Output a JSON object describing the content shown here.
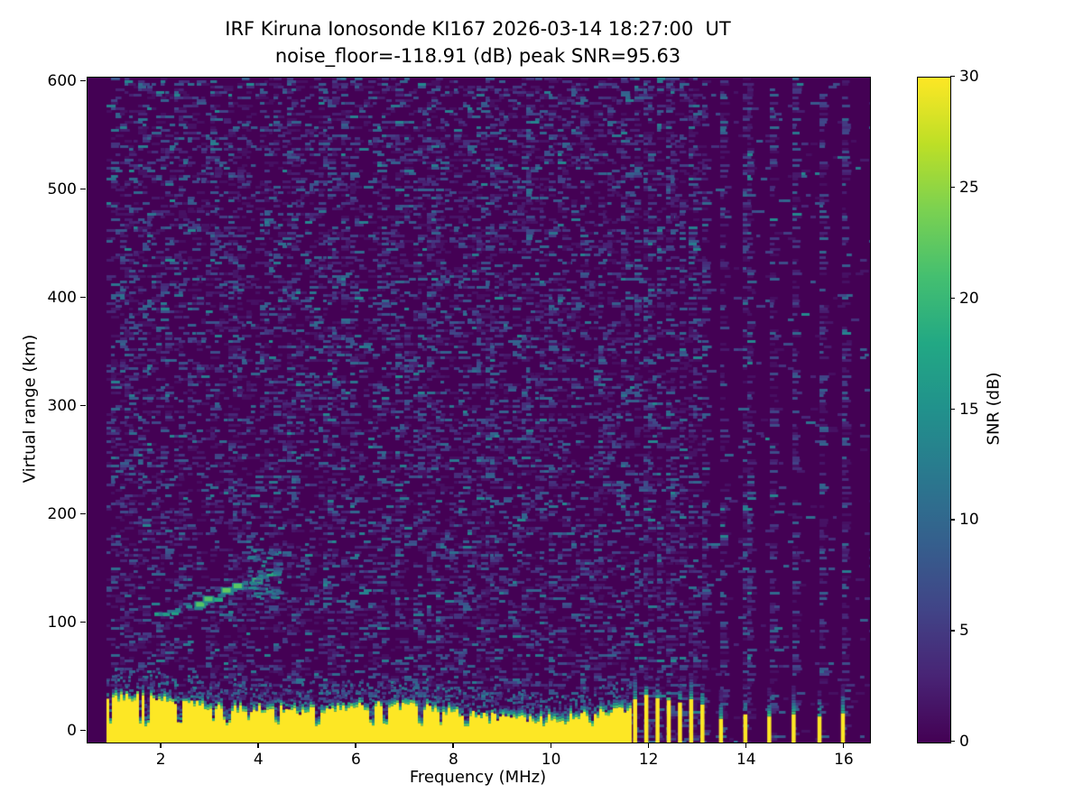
{
  "chart_data": {
    "type": "heatmap",
    "title": "IRF Kiruna Ionosonde KI167 2026-03-14 18:27:00  UT",
    "subtitle": "noise_floor=-118.91 (dB) peak SNR=95.63",
    "xlabel": "Frequency (MHz)",
    "ylabel": "Virtual range (km)",
    "xlim": [
      0.48,
      16.52
    ],
    "ylim": [
      -10,
      604
    ],
    "xticks": [
      2,
      4,
      6,
      8,
      10,
      12,
      14,
      16
    ],
    "yticks": [
      0,
      100,
      200,
      300,
      400,
      500,
      600
    ],
    "noise_floor_db": -118.91,
    "peak_snr_db": 95.63,
    "grid": false,
    "colorbar": {
      "label": "SNR (dB)",
      "min": 0,
      "max": 30,
      "ticks": [
        0,
        5,
        10,
        15,
        20,
        25,
        30
      ],
      "colormap": "viridis"
    },
    "background_color": "#440154",
    "max_color": "#fde725",
    "content": {
      "data_start_mhz": 0.88,
      "ground_clutter": {
        "freq_range_mhz": [
          0.88,
          11.62
        ],
        "top_km_typical": 25,
        "bottom_km": -10
      },
      "clutter_notches_mhz": [
        1.68,
        2.35,
        3.35,
        4.32,
        5.15,
        6.27,
        7.3,
        8.2,
        9.82,
        10.75
      ],
      "echo_trace_points": [
        [
          1.85,
          108
        ],
        [
          2.2,
          112
        ],
        [
          2.5,
          115
        ],
        [
          2.75,
          118
        ],
        [
          3.0,
          124
        ],
        [
          3.3,
          130
        ],
        [
          3.6,
          136
        ],
        [
          3.9,
          141
        ],
        [
          4.15,
          146
        ],
        [
          4.35,
          150
        ]
      ],
      "echo_bright_blobs": [
        [
          2.78,
          118
        ],
        [
          2.95,
          123
        ],
        [
          3.32,
          131
        ],
        [
          3.55,
          135
        ],
        [
          3.95,
          140
        ]
      ],
      "echo_diffuse_cloud": {
        "freq_range_mhz": [
          3.75,
          4.4
        ],
        "range_km": [
          125,
          168
        ]
      },
      "rfi_stripes": {
        "dense": [
          {
            "f": 11.7,
            "top_km": 30
          },
          {
            "f": 11.93,
            "top_km": 34
          },
          {
            "f": 12.16,
            "top_km": 31
          },
          {
            "f": 12.39,
            "top_km": 29
          },
          {
            "f": 12.62,
            "top_km": 27
          },
          {
            "f": 12.85,
            "top_km": 30
          },
          {
            "f": 13.08,
            "top_km": 25
          }
        ],
        "sparse": [
          {
            "f": 13.46,
            "top_km": 12
          },
          {
            "f": 13.96,
            "top_km": 16
          },
          {
            "f": 14.45,
            "top_km": 14
          },
          {
            "f": 14.95,
            "top_km": 16
          },
          {
            "f": 15.48,
            "top_km": 14
          },
          {
            "f": 15.96,
            "top_km": 17
          }
        ]
      }
    }
  }
}
